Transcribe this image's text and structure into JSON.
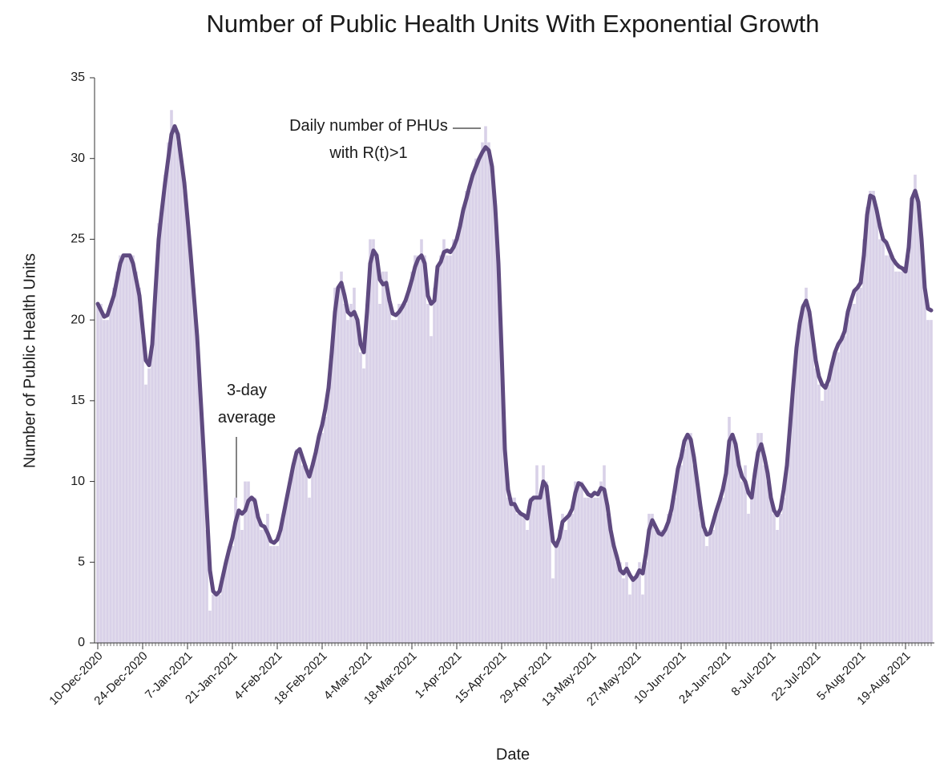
{
  "chart_data": {
    "type": "bar-line",
    "title": "Number of Public Health Units With Exponential Growth",
    "x_label": "Date",
    "y_label": "Number of Public Health Units",
    "ylim": [
      0,
      35
    ],
    "yticks": [
      0,
      5,
      10,
      15,
      20,
      25,
      30,
      35
    ],
    "categories": [
      "10-Dec-2020",
      null,
      null,
      null,
      null,
      null,
      null,
      null,
      null,
      null,
      null,
      null,
      null,
      null,
      "24-Dec-2020",
      null,
      null,
      null,
      null,
      null,
      null,
      null,
      null,
      null,
      null,
      null,
      null,
      null,
      "7-Jan-2021",
      null,
      null,
      null,
      null,
      null,
      null,
      null,
      null,
      null,
      null,
      null,
      null,
      null,
      "21-Jan-2021",
      null,
      null,
      null,
      null,
      null,
      null,
      null,
      null,
      null,
      null,
      null,
      null,
      null,
      "4-Feb-2021",
      null,
      null,
      null,
      null,
      null,
      null,
      null,
      null,
      null,
      null,
      null,
      null,
      null,
      "18-Feb-2021",
      null,
      null,
      null,
      null,
      null,
      null,
      null,
      null,
      null,
      null,
      null,
      null,
      null,
      "4-Mar-2021",
      null,
      null,
      null,
      null,
      null,
      null,
      null,
      null,
      null,
      null,
      null,
      null,
      null,
      "18-Mar-2021",
      null,
      null,
      null,
      null,
      null,
      null,
      null,
      null,
      null,
      null,
      null,
      null,
      null,
      "1-Apr-2021",
      null,
      null,
      null,
      null,
      null,
      null,
      null,
      null,
      null,
      null,
      null,
      null,
      null,
      "15-Apr-2021",
      null,
      null,
      null,
      null,
      null,
      null,
      null,
      null,
      null,
      null,
      null,
      null,
      null,
      "29-Apr-2021",
      null,
      null,
      null,
      null,
      null,
      null,
      null,
      null,
      null,
      null,
      null,
      null,
      null,
      "13-May-2021",
      null,
      null,
      null,
      null,
      null,
      null,
      null,
      null,
      null,
      null,
      null,
      null,
      null,
      "27-May-2021",
      null,
      null,
      null,
      null,
      null,
      null,
      null,
      null,
      null,
      null,
      null,
      null,
      null,
      "10-Jun-2021",
      null,
      null,
      null,
      null,
      null,
      null,
      null,
      null,
      null,
      null,
      null,
      null,
      null,
      "24-Jun-2021",
      null,
      null,
      null,
      null,
      null,
      null,
      null,
      null,
      null,
      null,
      null,
      null,
      null,
      "8-Jul-2021",
      null,
      null,
      null,
      null,
      null,
      null,
      null,
      null,
      null,
      null,
      null,
      null,
      null,
      "22-Jul-2021",
      null,
      null,
      null,
      null,
      null,
      null,
      null,
      null,
      null,
      null,
      null,
      null,
      null,
      "5-Aug-2021",
      null,
      null,
      null,
      null,
      null,
      null,
      null,
      null,
      null,
      null,
      null,
      null,
      null,
      "19-Aug-2021",
      null,
      null,
      null,
      null,
      null,
      null,
      null,
      null
    ],
    "series": [
      {
        "name": "Daily number of PHUs with R(t)>1",
        "kind": "bar",
        "color": "#d9d1e8",
        "values": [
          21,
          21,
          20,
          20,
          21,
          22,
          23,
          24,
          24,
          24,
          24,
          24,
          23,
          22,
          19,
          16,
          17,
          19,
          22,
          26,
          27,
          29,
          31,
          33,
          32,
          31,
          30,
          28,
          26,
          24,
          22,
          19,
          15,
          12,
          7,
          2,
          3,
          3,
          3,
          4,
          5,
          6,
          6,
          9,
          8,
          7,
          10,
          10,
          9,
          9,
          8,
          7,
          7,
          8,
          6,
          6,
          6,
          7,
          8,
          9,
          10,
          11,
          12,
          12,
          11,
          11,
          9,
          11,
          12,
          13,
          13,
          14,
          16,
          18,
          22,
          22,
          23,
          21,
          20,
          21,
          22,
          20,
          18,
          17,
          21,
          25,
          25,
          24,
          21,
          23,
          23,
          21,
          20,
          20,
          21,
          21,
          21,
          22,
          23,
          24,
          24,
          25,
          24,
          21,
          19,
          22,
          23,
          24,
          25,
          24,
          24,
          25,
          25,
          26,
          27,
          28,
          28,
          29,
          30,
          30,
          31,
          32,
          31,
          29,
          27,
          23,
          18,
          12,
          9,
          9,
          9,
          8,
          8,
          8,
          7,
          9,
          9,
          11,
          9,
          11,
          10,
          8,
          4,
          6,
          7,
          8,
          7,
          8,
          8,
          10,
          10,
          10,
          9,
          9,
          9,
          9,
          9,
          10,
          11,
          8,
          7,
          6,
          5,
          5,
          4,
          5,
          3,
          4,
          4,
          5,
          3,
          5,
          8,
          8,
          7,
          7,
          7,
          7,
          8,
          8,
          9,
          11,
          11,
          12,
          13,
          13,
          11,
          10,
          8,
          7,
          6,
          7,
          7,
          8,
          9,
          9,
          11,
          14,
          13,
          12,
          11,
          10,
          11,
          8,
          9,
          10,
          13,
          13,
          11,
          10,
          9,
          8,
          7,
          8,
          9,
          11,
          14,
          16,
          18,
          20,
          21,
          22,
          20,
          19,
          17,
          16,
          15,
          16,
          16,
          17,
          18,
          18,
          19,
          19,
          20,
          21,
          21,
          22,
          22,
          25,
          27,
          28,
          28,
          27,
          25,
          25,
          24,
          24,
          24,
          23,
          23,
          23,
          23,
          24,
          27,
          29,
          27,
          25,
          22,
          20,
          20
        ]
      },
      {
        "name": "3-day average",
        "kind": "line",
        "color": "#5f4a80",
        "values": [
          21,
          20.6,
          20.2,
          20.3,
          20.9,
          21.5,
          22.5,
          23.5,
          24,
          24,
          24,
          23.5,
          22.5,
          21.5,
          19.5,
          17.5,
          17.2,
          18.5,
          21.8,
          25,
          26.8,
          28.5,
          30,
          31.5,
          32,
          31.5,
          30,
          28.5,
          26.3,
          24,
          21.5,
          19,
          15.5,
          12,
          8.3,
          4.5,
          3.2,
          3,
          3.2,
          4.1,
          5,
          5.8,
          6.5,
          7.5,
          8.2,
          8,
          8.2,
          8.8,
          9,
          8.8,
          7.8,
          7.3,
          7.2,
          6.8,
          6.3,
          6.2,
          6.4,
          7,
          8,
          9,
          10,
          11,
          11.8,
          12,
          11.4,
          10.8,
          10.3,
          11,
          11.8,
          12.8,
          13.5,
          14.5,
          15.8,
          18,
          20.5,
          22,
          22.3,
          21.5,
          20.5,
          20.3,
          20.5,
          20,
          18.5,
          18,
          20.5,
          23.5,
          24.3,
          24,
          22.5,
          22.2,
          22.3,
          21.2,
          20.4,
          20.3,
          20.5,
          20.8,
          21.2,
          21.8,
          22.5,
          23.3,
          23.8,
          24,
          23.5,
          21.5,
          21,
          21.2,
          23.3,
          23.6,
          24.2,
          24.3,
          24.2,
          24.5,
          25,
          25.8,
          26.8,
          27.5,
          28.3,
          29,
          29.5,
          30,
          30.4,
          30.7,
          30.5,
          29.5,
          27,
          23.5,
          18,
          12,
          9.5,
          8.6,
          8.6,
          8.2,
          8,
          7.9,
          7.7,
          8.8,
          9,
          9,
          9,
          10,
          9.7,
          8,
          6.3,
          6,
          6.5,
          7.5,
          7.7,
          7.9,
          8.3,
          9.3,
          9.9,
          9.8,
          9.5,
          9.2,
          9.1,
          9.3,
          9.2,
          9.6,
          9.5,
          8.5,
          7,
          6,
          5.3,
          4.5,
          4.3,
          4.6,
          4.2,
          3.9,
          4.1,
          4.5,
          4.3,
          5.5,
          7,
          7.6,
          7.2,
          6.8,
          6.7,
          7,
          7.5,
          8.3,
          9.5,
          10.8,
          11.5,
          12.5,
          12.9,
          12.6,
          11.5,
          10,
          8.5,
          7.2,
          6.7,
          6.8,
          7.5,
          8.2,
          8.8,
          9.5,
          10.5,
          12.5,
          12.9,
          12.3,
          11,
          10.3,
          10,
          9.3,
          9,
          10.5,
          11.8,
          12.3,
          11.5,
          10.5,
          9,
          8.2,
          7.9,
          8.3,
          9.5,
          11,
          13.5,
          16,
          18.3,
          19.8,
          20.8,
          21.2,
          20.5,
          19,
          17.5,
          16.5,
          16,
          15.8,
          16.3,
          17.2,
          18,
          18.5,
          18.8,
          19.3,
          20.5,
          21.2,
          21.8,
          22,
          22.3,
          24,
          26.5,
          27.7,
          27.6,
          26.8,
          25.8,
          25,
          24.8,
          24.3,
          23.8,
          23.5,
          23.3,
          23.2,
          23,
          24.5,
          27.5,
          28,
          27.3,
          25,
          22,
          20.7,
          20.6
        ]
      }
    ]
  }
}
